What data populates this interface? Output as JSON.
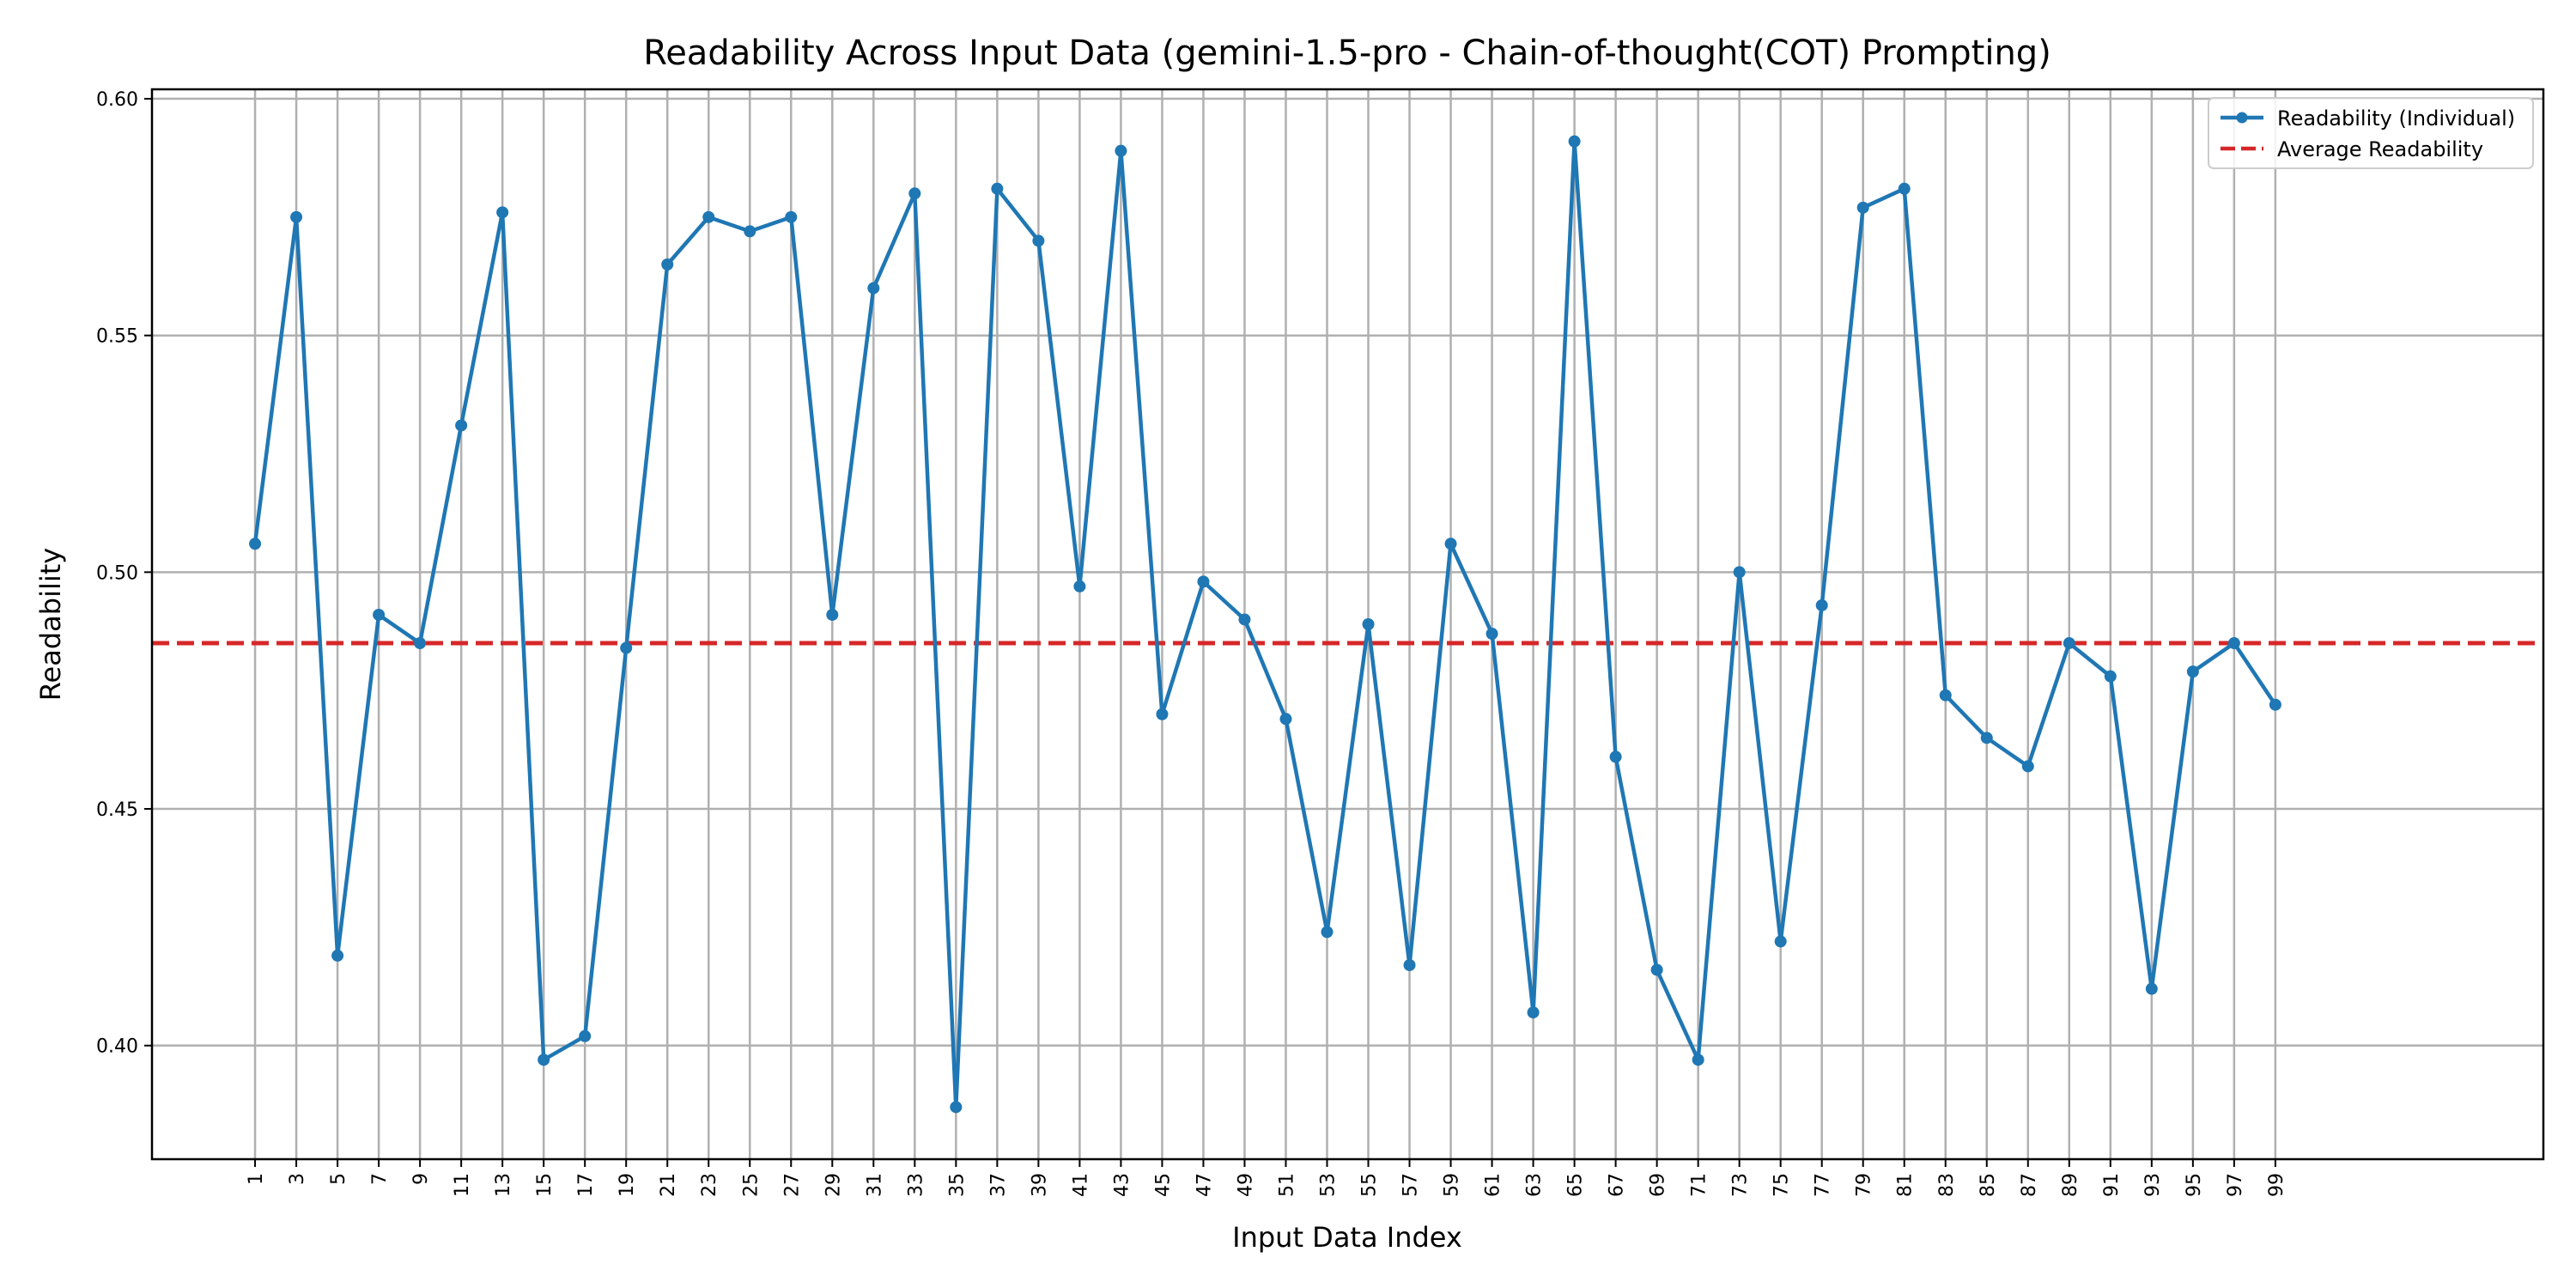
{
  "chart_data": {
    "type": "line",
    "title": "Readability Across Input Data (gemini-1.5-pro - Chain-of-thought(COT) Prompting)",
    "xlabel": "Input Data Index",
    "ylabel": "Readability",
    "xlim": [
      -4,
      112
    ],
    "ylim": [
      0.376,
      0.602
    ],
    "x_ticks": [
      1,
      3,
      5,
      7,
      9,
      11,
      13,
      15,
      17,
      19,
      21,
      23,
      25,
      27,
      29,
      31,
      33,
      35,
      37,
      39,
      41,
      43,
      45,
      47,
      49,
      51,
      53,
      55,
      57,
      59,
      61,
      63,
      65,
      67,
      69,
      71,
      73,
      75,
      77,
      79,
      81,
      83,
      85,
      87,
      89,
      91,
      93,
      95,
      97,
      99
    ],
    "y_ticks": [
      0.4,
      0.45,
      0.5,
      0.55,
      0.6
    ],
    "y_tick_labels": [
      "0.40",
      "0.45",
      "0.50",
      "0.55",
      "0.60"
    ],
    "grid": true,
    "legend_position": "top-right",
    "series": [
      {
        "name": "Readability (Individual)",
        "color": "#1f77b4",
        "style": "solid-with-markers",
        "x": [
          1,
          3,
          5,
          7,
          9,
          11,
          13,
          15,
          17,
          19,
          21,
          23,
          25,
          27,
          29,
          31,
          33,
          35,
          37,
          39,
          41,
          43,
          45,
          47,
          49,
          51,
          53,
          55,
          57,
          59,
          61,
          63,
          65,
          67,
          69,
          71,
          73,
          75,
          77,
          79,
          81,
          83,
          85,
          87,
          89,
          91,
          93,
          95,
          97,
          99
        ],
        "values": [
          0.506,
          0.575,
          0.419,
          0.491,
          0.485,
          0.531,
          0.576,
          0.397,
          0.402,
          0.484,
          0.565,
          0.575,
          0.572,
          0.575,
          0.491,
          0.56,
          0.58,
          0.387,
          0.581,
          0.57,
          0.497,
          0.589,
          0.47,
          0.498,
          0.49,
          0.469,
          0.424,
          0.489,
          0.417,
          0.506,
          0.487,
          0.407,
          0.591,
          0.461,
          0.416,
          0.397,
          0.5,
          0.422,
          0.493,
          0.577,
          0.581,
          0.474,
          0.465,
          0.459,
          0.485,
          0.478,
          0.412,
          0.479,
          0.485,
          0.472
        ]
      },
      {
        "name": "Average Readability",
        "color": "#d62728",
        "style": "dashed",
        "constant": 0.485
      }
    ]
  }
}
